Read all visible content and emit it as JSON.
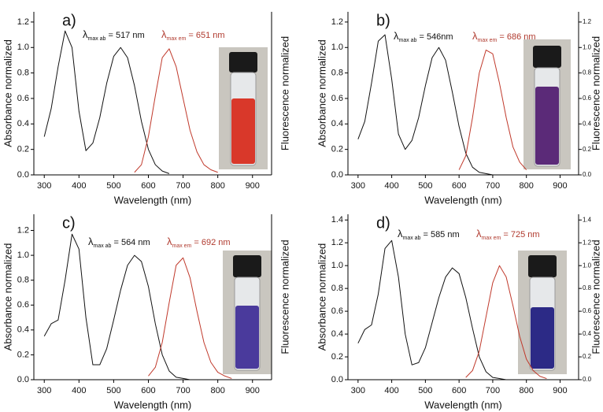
{
  "chart_data": [
    {
      "type": "line",
      "label": "a)",
      "xlabel": "Wavelength (nm)",
      "ylabel": "Absorbance normalized",
      "y2label": "Fluorescence normalized",
      "xlim": [
        270,
        955
      ],
      "xticks": [
        300,
        400,
        500,
        600,
        700,
        800,
        900
      ],
      "ylim": [
        0,
        1.28
      ],
      "yticks": [
        {
          "value": 0,
          "label": "0.0"
        },
        0.2,
        0.4,
        0.6,
        0.8,
        {
          "value": 1,
          "label": "1.0"
        },
        1.2
      ],
      "y2lim": [
        0,
        1.28
      ],
      "annotations": [
        {
          "symbol": "λ",
          "sub": "max ab",
          "text": "= 517 nm",
          "color": "#111111"
        },
        {
          "symbol": "λ",
          "sub": "max em",
          "text": "= 651 nm",
          "color": "#b03a2e"
        }
      ],
      "series": [
        {
          "color": "#111111",
          "x": [
            300,
            320,
            340,
            360,
            380,
            400,
            420,
            440,
            460,
            480,
            500,
            520,
            540,
            560,
            580,
            600,
            620,
            640,
            660
          ],
          "values": [
            0.3,
            0.52,
            0.85,
            1.13,
            1.0,
            0.5,
            0.19,
            0.25,
            0.45,
            0.72,
            0.93,
            1.0,
            0.92,
            0.7,
            0.42,
            0.2,
            0.08,
            0.03,
            0.01
          ]
        },
        {
          "color": "#c0392b",
          "axis": "y2",
          "x": [
            560,
            580,
            600,
            620,
            640,
            660,
            680,
            700,
            720,
            740,
            760,
            780,
            800
          ],
          "values": [
            0.02,
            0.08,
            0.3,
            0.62,
            0.92,
            0.99,
            0.85,
            0.6,
            0.35,
            0.18,
            0.08,
            0.04,
            0.02
          ]
        }
      ]
    },
    {
      "type": "line",
      "label": "b)",
      "xlabel": "Wavelength (nm)",
      "ylabel": "Absorbance normalized",
      "y2label": "Fluorescence normalized",
      "xlim": [
        270,
        955
      ],
      "xticks": [
        300,
        400,
        500,
        600,
        700,
        800,
        900
      ],
      "ylim": [
        0,
        1.28
      ],
      "yticks": [
        {
          "value": 0,
          "label": "0.0"
        },
        0.2,
        0.4,
        0.6,
        0.8,
        {
          "value": 1,
          "label": "1.0"
        },
        1.2
      ],
      "y2lim": [
        0,
        1.28
      ],
      "y2ticks": [
        {
          "value": 0,
          "label": "0.0"
        },
        0.2,
        0.4,
        0.6,
        0.8,
        {
          "value": 1,
          "label": "1.0"
        },
        1.2
      ],
      "annotations": [
        {
          "symbol": "λ",
          "sub": "max ab",
          "text": "= 546nm",
          "color": "#111111"
        },
        {
          "symbol": "λ",
          "sub": "max em",
          "text": "= 686 nm",
          "color": "#b03a2e"
        }
      ],
      "series": [
        {
          "color": "#111111",
          "x": [
            300,
            320,
            340,
            360,
            380,
            400,
            420,
            440,
            460,
            480,
            500,
            520,
            540,
            560,
            580,
            600,
            620,
            640,
            660,
            680,
            700
          ],
          "values": [
            0.28,
            0.42,
            0.72,
            1.05,
            1.1,
            0.75,
            0.32,
            0.2,
            0.27,
            0.45,
            0.7,
            0.92,
            1.0,
            0.9,
            0.65,
            0.38,
            0.17,
            0.06,
            0.02,
            0.01,
            0.0
          ]
        },
        {
          "color": "#c0392b",
          "axis": "y2",
          "x": [
            600,
            620,
            640,
            660,
            680,
            700,
            720,
            740,
            760,
            780,
            800
          ],
          "values": [
            0.04,
            0.15,
            0.45,
            0.8,
            0.98,
            0.95,
            0.72,
            0.45,
            0.22,
            0.1,
            0.04
          ]
        }
      ]
    },
    {
      "type": "line",
      "label": "c)",
      "xlabel": "Wavelength (nm)",
      "ylabel": "Absorbance normalized",
      "y2label": "Fluorescence normalized",
      "xlim": [
        270,
        955
      ],
      "xticks": [
        300,
        400,
        500,
        600,
        700,
        800,
        900
      ],
      "ylim": [
        0,
        1.33
      ],
      "yticks": [
        {
          "value": 0,
          "label": "0.0"
        },
        0.2,
        0.4,
        0.6,
        0.8,
        {
          "value": 1,
          "label": "1.0"
        },
        1.2
      ],
      "y2lim": [
        0,
        1.33
      ],
      "annotations": [
        {
          "symbol": "λ",
          "sub": "max ab",
          "text": "= 564 nm",
          "color": "#111111"
        },
        {
          "symbol": "λ",
          "sub": "max em",
          "text": "= 692 nm",
          "color": "#b03a2e"
        }
      ],
      "series": [
        {
          "color": "#111111",
          "x": [
            300,
            320,
            340,
            360,
            380,
            400,
            420,
            440,
            460,
            480,
            500,
            520,
            540,
            560,
            580,
            600,
            620,
            640,
            660,
            680,
            700,
            720
          ],
          "values": [
            0.35,
            0.45,
            0.48,
            0.8,
            1.17,
            1.05,
            0.5,
            0.12,
            0.12,
            0.25,
            0.48,
            0.72,
            0.92,
            1.0,
            0.95,
            0.75,
            0.45,
            0.2,
            0.07,
            0.02,
            0.01,
            0.0
          ]
        },
        {
          "color": "#c0392b",
          "axis": "y2",
          "x": [
            600,
            620,
            640,
            660,
            680,
            700,
            720,
            740,
            760,
            780,
            800,
            820,
            840
          ],
          "values": [
            0.03,
            0.1,
            0.3,
            0.62,
            0.92,
            0.98,
            0.82,
            0.55,
            0.3,
            0.14,
            0.06,
            0.03,
            0.01
          ]
        }
      ]
    },
    {
      "type": "line",
      "label": "d)",
      "xlabel": "Wavelength (nm)",
      "ylabel": "Absorbance normalized",
      "y2label": "Fluorescence normalized",
      "xlim": [
        270,
        955
      ],
      "xticks": [
        300,
        400,
        500,
        600,
        700,
        800,
        900
      ],
      "ylim": [
        0,
        1.45
      ],
      "yticks": [
        {
          "value": 0,
          "label": "0.0"
        },
        0.2,
        0.4,
        0.6,
        0.8,
        {
          "value": 1,
          "label": "1.0"
        },
        1.2,
        1.4
      ],
      "y2lim": [
        0,
        1.45
      ],
      "y2ticks": [
        {
          "value": 0,
          "label": "0.0"
        },
        0.2,
        0.4,
        0.6,
        0.8,
        {
          "value": 1,
          "label": "1.0"
        },
        1.2,
        1.4
      ],
      "annotations": [
        {
          "symbol": "λ",
          "sub": "max ab",
          "text": "= 585 nm",
          "color": "#111111"
        },
        {
          "symbol": "λ",
          "sub": "max em",
          "text": "= 725 nm",
          "color": "#b03a2e"
        }
      ],
      "series": [
        {
          "color": "#111111",
          "x": [
            300,
            320,
            340,
            360,
            380,
            400,
            420,
            440,
            460,
            480,
            500,
            520,
            540,
            560,
            580,
            600,
            620,
            640,
            660,
            680,
            700,
            720,
            740
          ],
          "values": [
            0.32,
            0.44,
            0.48,
            0.75,
            1.15,
            1.22,
            0.9,
            0.4,
            0.13,
            0.15,
            0.28,
            0.5,
            0.72,
            0.9,
            0.98,
            0.93,
            0.72,
            0.45,
            0.2,
            0.07,
            0.02,
            0.01,
            0.0
          ]
        },
        {
          "color": "#c0392b",
          "axis": "y2",
          "x": [
            620,
            640,
            660,
            680,
            700,
            720,
            740,
            760,
            780,
            800,
            820,
            840,
            860
          ],
          "values": [
            0.02,
            0.08,
            0.25,
            0.55,
            0.85,
            1.0,
            0.9,
            0.65,
            0.38,
            0.18,
            0.08,
            0.03,
            0.01
          ]
        }
      ]
    }
  ]
}
